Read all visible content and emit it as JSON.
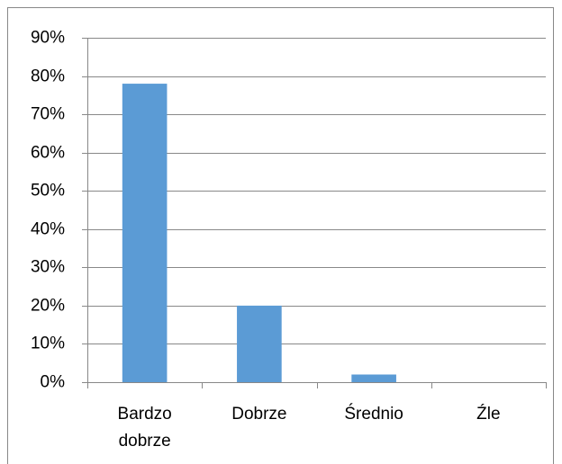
{
  "chart_data": {
    "type": "bar",
    "categories": [
      "Bardzo dobrze",
      "Dobrze",
      "Średnio",
      "Źle"
    ],
    "values": [
      78,
      20,
      2,
      0
    ],
    "color": "#5b9bd5",
    "ylim": [
      0,
      90
    ],
    "yticks": [
      {
        "value": 0,
        "label": "0%"
      },
      {
        "value": 10,
        "label": "10%"
      },
      {
        "value": 20,
        "label": "20%"
      },
      {
        "value": 30,
        "label": "30%"
      },
      {
        "value": 40,
        "label": "40%"
      },
      {
        "value": 50,
        "label": "50%"
      },
      {
        "value": 60,
        "label": "60%"
      },
      {
        "value": 70,
        "label": "70%"
      },
      {
        "value": 80,
        "label": "80%"
      },
      {
        "value": 90,
        "label": "90%"
      }
    ],
    "grid": true
  }
}
